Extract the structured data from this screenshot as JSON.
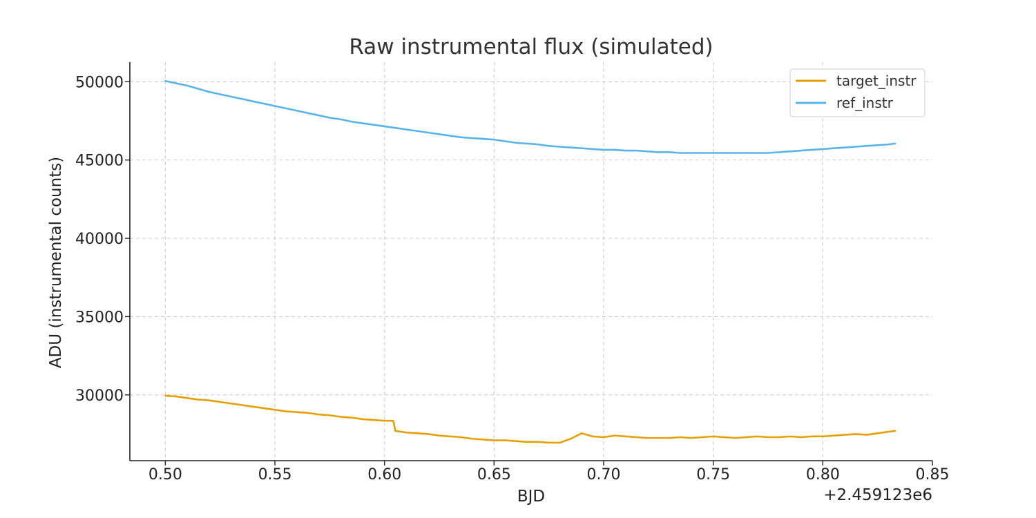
{
  "chart_data": {
    "type": "line",
    "title": "Raw instrumental flux (simulated)",
    "xlabel": "BJD",
    "ylabel": "ADU (instrumental counts)",
    "x_offset_label": "+2.459123e6",
    "xlim": [
      0.4838,
      0.85
    ],
    "ylim": [
      25800,
      51250
    ],
    "xticks": [
      0.5,
      0.55,
      0.6,
      0.65,
      0.7,
      0.75,
      0.8,
      0.85
    ],
    "xtick_labels": [
      "0.50",
      "0.55",
      "0.60",
      "0.65",
      "0.70",
      "0.75",
      "0.80",
      "0.85"
    ],
    "yticks": [
      30000,
      35000,
      40000,
      45000,
      50000
    ],
    "ytick_labels": [
      "30000",
      "35000",
      "40000",
      "45000",
      "50000"
    ],
    "grid": true,
    "legend_position": "top-right",
    "series": [
      {
        "name": "target_instr",
        "color": "#E69F00",
        "x": [
          0.5,
          0.505,
          0.51,
          0.515,
          0.52,
          0.525,
          0.53,
          0.535,
          0.54,
          0.545,
          0.55,
          0.555,
          0.56,
          0.565,
          0.57,
          0.575,
          0.58,
          0.585,
          0.59,
          0.595,
          0.6,
          0.604,
          0.605,
          0.61,
          0.615,
          0.62,
          0.625,
          0.63,
          0.635,
          0.64,
          0.645,
          0.65,
          0.655,
          0.66,
          0.665,
          0.67,
          0.675,
          0.68,
          0.685,
          0.69,
          0.695,
          0.7,
          0.705,
          0.71,
          0.715,
          0.72,
          0.725,
          0.73,
          0.735,
          0.74,
          0.745,
          0.75,
          0.755,
          0.76,
          0.765,
          0.77,
          0.775,
          0.78,
          0.785,
          0.79,
          0.795,
          0.8,
          0.805,
          0.81,
          0.815,
          0.82,
          0.825,
          0.83,
          0.833
        ],
        "y": [
          29950,
          29900,
          29800,
          29700,
          29650,
          29550,
          29450,
          29350,
          29250,
          29150,
          29050,
          28950,
          28900,
          28850,
          28750,
          28700,
          28600,
          28550,
          28450,
          28400,
          28350,
          28350,
          27700,
          27600,
          27550,
          27500,
          27400,
          27350,
          27300,
          27200,
          27150,
          27100,
          27100,
          27050,
          27000,
          27000,
          26950,
          26950,
          27200,
          27550,
          27350,
          27300,
          27400,
          27350,
          27300,
          27250,
          27250,
          27250,
          27300,
          27250,
          27300,
          27350,
          27300,
          27250,
          27300,
          27350,
          27300,
          27300,
          27350,
          27300,
          27350,
          27350,
          27400,
          27450,
          27500,
          27450,
          27550,
          27650,
          27700
        ]
      },
      {
        "name": "ref_instr",
        "color": "#56B4E9",
        "x": [
          0.5,
          0.505,
          0.51,
          0.515,
          0.52,
          0.525,
          0.53,
          0.535,
          0.54,
          0.545,
          0.55,
          0.555,
          0.56,
          0.565,
          0.57,
          0.575,
          0.58,
          0.585,
          0.59,
          0.595,
          0.6,
          0.605,
          0.61,
          0.615,
          0.62,
          0.625,
          0.63,
          0.635,
          0.64,
          0.645,
          0.65,
          0.655,
          0.66,
          0.665,
          0.67,
          0.675,
          0.68,
          0.685,
          0.69,
          0.695,
          0.7,
          0.705,
          0.71,
          0.715,
          0.72,
          0.725,
          0.73,
          0.735,
          0.74,
          0.745,
          0.75,
          0.755,
          0.76,
          0.765,
          0.77,
          0.775,
          0.78,
          0.785,
          0.79,
          0.795,
          0.8,
          0.805,
          0.81,
          0.815,
          0.82,
          0.825,
          0.83,
          0.833
        ],
        "y": [
          50050,
          49900,
          49750,
          49550,
          49350,
          49200,
          49050,
          48900,
          48750,
          48600,
          48450,
          48300,
          48150,
          48000,
          47850,
          47700,
          47600,
          47450,
          47350,
          47250,
          47150,
          47050,
          46950,
          46850,
          46750,
          46650,
          46550,
          46450,
          46400,
          46350,
          46300,
          46200,
          46100,
          46050,
          46000,
          45900,
          45850,
          45800,
          45750,
          45700,
          45650,
          45650,
          45600,
          45600,
          45550,
          45500,
          45500,
          45450,
          45450,
          45450,
          45450,
          45450,
          45450,
          45450,
          45450,
          45450,
          45500,
          45550,
          45600,
          45650,
          45700,
          45750,
          45800,
          45850,
          45900,
          45950,
          46000,
          46050
        ]
      }
    ]
  }
}
